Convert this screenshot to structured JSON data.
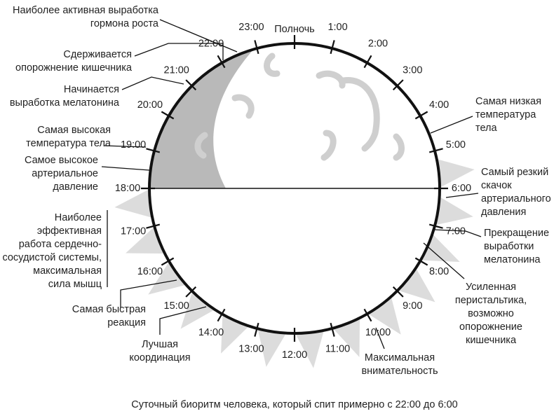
{
  "clock": {
    "midnight": "Полночь",
    "hours": [
      "1:00",
      "2:00",
      "3:00",
      "4:00",
      "5:00",
      "6:00",
      "7:00",
      "8:00",
      "9:00",
      "10:00",
      "11:00",
      "12:00",
      "13:00",
      "14:00",
      "15:00",
      "16:00",
      "17:00",
      "18:00",
      "19:00",
      "20:00",
      "21:00",
      "22:00",
      "23:00"
    ]
  },
  "annotations": [
    {
      "lines": [
        "Наиболее активная выработка",
        "гормона роста"
      ]
    },
    {
      "lines": [
        "Сдерживается",
        "опорожнение кишечника"
      ]
    },
    {
      "lines": [
        "Начинается",
        "выработка мелатонина"
      ]
    },
    {
      "lines": [
        "Самая высокая",
        "температура тела"
      ]
    },
    {
      "lines": [
        "Самое высокое",
        "артериальное",
        "давление"
      ]
    },
    {
      "lines": [
        "Наиболее",
        "эффективная",
        "работа сердечно-",
        "сосудистой системы,",
        "максимальная",
        "сила мышц"
      ]
    },
    {
      "lines": [
        "Самая быстрая",
        "реакция"
      ]
    },
    {
      "lines": [
        "Лучшая",
        "координация"
      ]
    },
    {
      "lines": [
        "Самая низкая",
        "температура",
        "тела"
      ]
    },
    {
      "lines": [
        "Самый резкий",
        "скачок",
        "артериального",
        "давления"
      ]
    },
    {
      "lines": [
        "Прекращение",
        "выработки",
        "мелатонина"
      ]
    },
    {
      "lines": [
        "Усиленная",
        "перистальтика,",
        "возможно",
        "опорожнение",
        "кишечника"
      ]
    },
    {
      "lines": [
        "Максимальная",
        "внимательность"
      ]
    }
  ],
  "caption": "Суточный биоритм человека, который спит примерно с 22:00 до 6:00"
}
